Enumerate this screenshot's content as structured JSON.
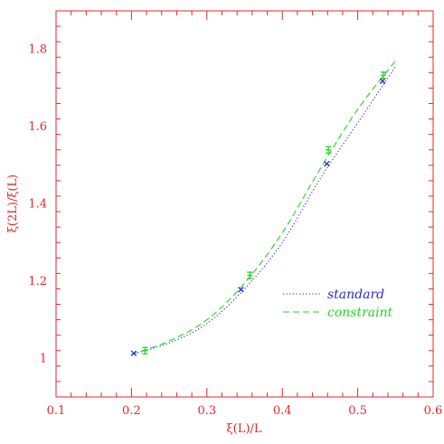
{
  "chart_data": {
    "type": "scatter",
    "xlabel": "ξ(L)/L",
    "ylabel": "ξ(2L)/ξ(L)",
    "xlim": [
      0.1,
      0.6
    ],
    "ylim": [
      0.9,
      1.9
    ],
    "x_ticks": [
      0.1,
      0.2,
      0.3,
      0.4,
      0.5,
      0.6
    ],
    "x_tick_labels": [
      "0.1",
      "0.2",
      "0.3",
      "0.4",
      "0.5",
      "0.6"
    ],
    "y_ticks": [
      1.0,
      1.2,
      1.4,
      1.6,
      1.8
    ],
    "y_tick_labels": [
      "1",
      "1.2",
      "1.4",
      "1.6",
      "1.8"
    ],
    "grid": false,
    "legend_position": "lower-right",
    "axis_color": "#e8262b",
    "series": [
      {
        "name": "standard",
        "color": "#2a2ad6",
        "line_style": "dotted",
        "marker": "x",
        "points": [
          {
            "x": 0.203,
            "y": 1.013
          },
          {
            "x": 0.345,
            "y": 1.178
          },
          {
            "x": 0.459,
            "y": 1.504
          },
          {
            "x": 0.533,
            "y": 1.718
          }
        ],
        "curve": [
          {
            "x": 0.2,
            "y": 1.01
          },
          {
            "x": 0.25,
            "y": 1.04
          },
          {
            "x": 0.3,
            "y": 1.09
          },
          {
            "x": 0.35,
            "y": 1.18
          },
          {
            "x": 0.4,
            "y": 1.3
          },
          {
            "x": 0.45,
            "y": 1.465
          },
          {
            "x": 0.5,
            "y": 1.61
          },
          {
            "x": 0.55,
            "y": 1.755
          }
        ]
      },
      {
        "name": "constraint",
        "color": "#1ed81e",
        "line_style": "dashed",
        "marker": "errorbar",
        "points": [
          {
            "x": 0.218,
            "y": 1.02
          },
          {
            "x": 0.357,
            "y": 1.215
          },
          {
            "x": 0.461,
            "y": 1.54
          },
          {
            "x": 0.534,
            "y": 1.733
          }
        ],
        "curve": [
          {
            "x": 0.2,
            "y": 1.01
          },
          {
            "x": 0.25,
            "y": 1.045
          },
          {
            "x": 0.3,
            "y": 1.1
          },
          {
            "x": 0.35,
            "y": 1.195
          },
          {
            "x": 0.4,
            "y": 1.325
          },
          {
            "x": 0.45,
            "y": 1.49
          },
          {
            "x": 0.5,
            "y": 1.645
          },
          {
            "x": 0.552,
            "y": 1.775
          }
        ]
      }
    ]
  }
}
